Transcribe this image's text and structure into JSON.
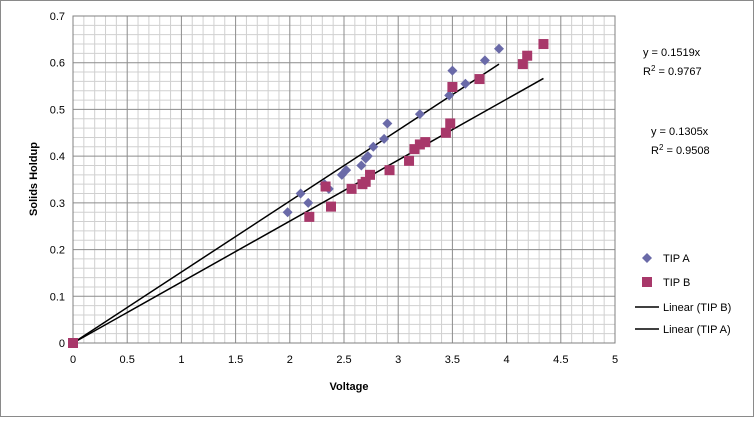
{
  "chart_data": {
    "type": "scatter",
    "title": "",
    "xlabel": "Voltage",
    "ylabel": "Solids Holdup",
    "xlim": [
      0,
      5
    ],
    "ylim": [
      0,
      0.7
    ],
    "x_ticks": [
      "0",
      "0.5",
      "1",
      "1.5",
      "2",
      "2.5",
      "3",
      "3.5",
      "4",
      "4.5",
      "5"
    ],
    "y_ticks": [
      "0",
      "0.1",
      "0.2",
      "0.3",
      "0.4",
      "0.5",
      "0.6",
      "0.7"
    ],
    "grid": true,
    "legend_position": "right",
    "series": [
      {
        "name": "TIP A",
        "marker": "diamond",
        "color": "#6a6aa8",
        "points": [
          [
            0,
            0
          ],
          [
            1.98,
            0.28
          ],
          [
            2.1,
            0.32
          ],
          [
            2.17,
            0.3
          ],
          [
            2.32,
            0.34
          ],
          [
            2.36,
            0.33
          ],
          [
            2.48,
            0.36
          ],
          [
            2.52,
            0.37
          ],
          [
            2.66,
            0.38
          ],
          [
            2.7,
            0.395
          ],
          [
            2.72,
            0.4
          ],
          [
            2.77,
            0.42
          ],
          [
            2.87,
            0.437
          ],
          [
            2.9,
            0.47
          ],
          [
            3.2,
            0.49
          ],
          [
            3.47,
            0.53
          ],
          [
            3.5,
            0.583
          ],
          [
            3.62,
            0.555
          ],
          [
            3.8,
            0.605
          ],
          [
            3.93,
            0.63
          ]
        ]
      },
      {
        "name": "TIP B",
        "marker": "square",
        "color": "#a8386a",
        "points": [
          [
            0,
            0
          ],
          [
            2.18,
            0.27
          ],
          [
            2.33,
            0.335
          ],
          [
            2.38,
            0.292
          ],
          [
            2.57,
            0.33
          ],
          [
            2.67,
            0.34
          ],
          [
            2.7,
            0.345
          ],
          [
            2.74,
            0.36
          ],
          [
            2.92,
            0.37
          ],
          [
            3.1,
            0.39
          ],
          [
            3.15,
            0.415
          ],
          [
            3.2,
            0.425
          ],
          [
            3.25,
            0.43
          ],
          [
            3.44,
            0.45
          ],
          [
            3.48,
            0.47
          ],
          [
            3.5,
            0.548
          ],
          [
            3.75,
            0.565
          ],
          [
            4.15,
            0.597
          ],
          [
            4.19,
            0.615
          ],
          [
            4.34,
            0.64
          ]
        ]
      }
    ],
    "trendlines": [
      {
        "name": "Linear (TIP B)",
        "color": "#000000",
        "slope": 0.1305,
        "x_range": [
          0,
          4.34
        ],
        "equation": "y = 0.1305x",
        "r2_prefix": "R",
        "r2_exp": "2",
        "r2_value": " = 0.9508"
      },
      {
        "name": "Linear (TIP A)",
        "color": "#000000",
        "slope": 0.1519,
        "x_range": [
          0,
          3.93
        ],
        "equation": "y = 0.1519x",
        "r2_prefix": "R",
        "r2_exp": "2",
        "r2_value": " = 0.9767"
      }
    ]
  }
}
